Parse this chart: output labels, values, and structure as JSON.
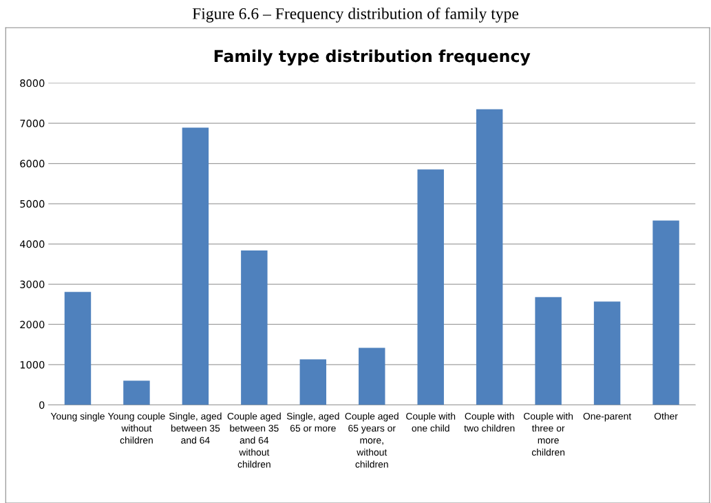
{
  "chart_data": {
    "type": "bar",
    "title": "Family type distribution frequency",
    "annotations": [
      "Figure 6.6 – Frequency distribution of family type"
    ],
    "categories": [
      "Young single",
      "Young couple without children",
      "Single, aged between 35 and 64",
      "Couple aged between 35 and 64 without children",
      "Single, aged 65 or more",
      "Couple aged 65 years or more, without children",
      "Couple with one child",
      "Couple with two children",
      "Couple with three or more children",
      "One-parent",
      "Other"
    ],
    "values": [
      2810,
      600,
      6890,
      3840,
      1130,
      1420,
      5850,
      7350,
      2680,
      2570,
      4580
    ],
    "color": "#4f81bd",
    "ylim": [
      0,
      8000
    ],
    "yticks": [
      0,
      1000,
      2000,
      3000,
      4000,
      5000,
      6000,
      7000,
      8000
    ],
    "grid": "y"
  }
}
